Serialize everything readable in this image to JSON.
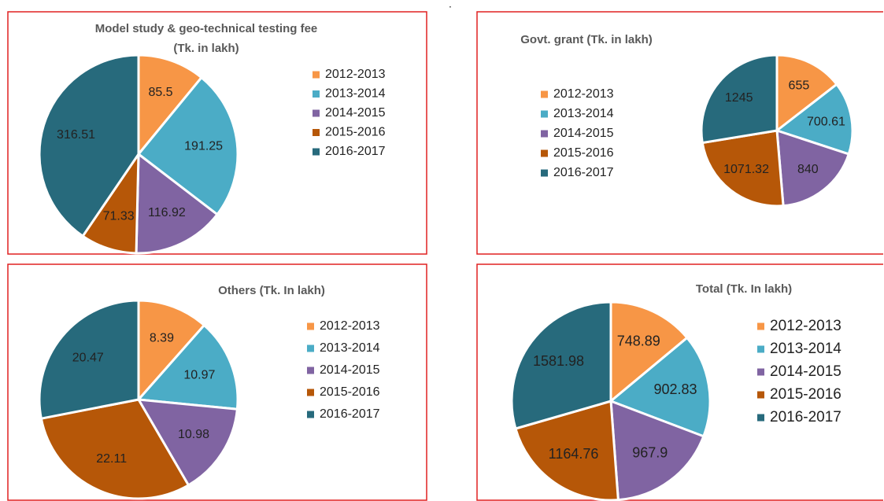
{
  "note": ".",
  "chart_data": [
    {
      "type": "pie",
      "title": [
        "Model study & geo-technical testing fee",
        "(Tk. in lakh)"
      ],
      "categories": [
        "2012-2013",
        "2013-2014",
        "2014-2015",
        "2015-2016",
        "2016-2017"
      ],
      "values": [
        85.5,
        191.25,
        116.92,
        71.33,
        316.51
      ],
      "colors": [
        "#f79646",
        "#4bacc6",
        "#8064a2",
        "#b65708",
        "#276a7c"
      ]
    },
    {
      "type": "pie",
      "title": [
        "Govt. grant (Tk. in lakh)"
      ],
      "categories": [
        "2012-2013",
        "2013-2014",
        "2014-2015",
        "2015-2016",
        "2016-2017"
      ],
      "values": [
        655,
        700.61,
        840,
        1071.32,
        1245
      ],
      "colors": [
        "#f79646",
        "#4bacc6",
        "#8064a2",
        "#b65708",
        "#276a7c"
      ]
    },
    {
      "type": "pie",
      "title": [
        "Others (Tk. In lakh)"
      ],
      "categories": [
        "2012-2013",
        "2013-2014",
        "2014-2015",
        "2015-2016",
        "2016-2017"
      ],
      "values": [
        8.39,
        10.97,
        10.98,
        22.11,
        20.47
      ],
      "colors": [
        "#f79646",
        "#4bacc6",
        "#8064a2",
        "#b65708",
        "#276a7c"
      ]
    },
    {
      "type": "pie",
      "title": [
        "Total (Tk. In lakh)"
      ],
      "categories": [
        "2012-2013",
        "2013-2014",
        "2014-2015",
        "2015-2016",
        "2016-2017"
      ],
      "values": [
        748.89,
        902.83,
        967.9,
        1164.76,
        1581.98
      ],
      "colors": [
        "#f79646",
        "#4bacc6",
        "#8064a2",
        "#b65708",
        "#276a7c"
      ]
    }
  ]
}
